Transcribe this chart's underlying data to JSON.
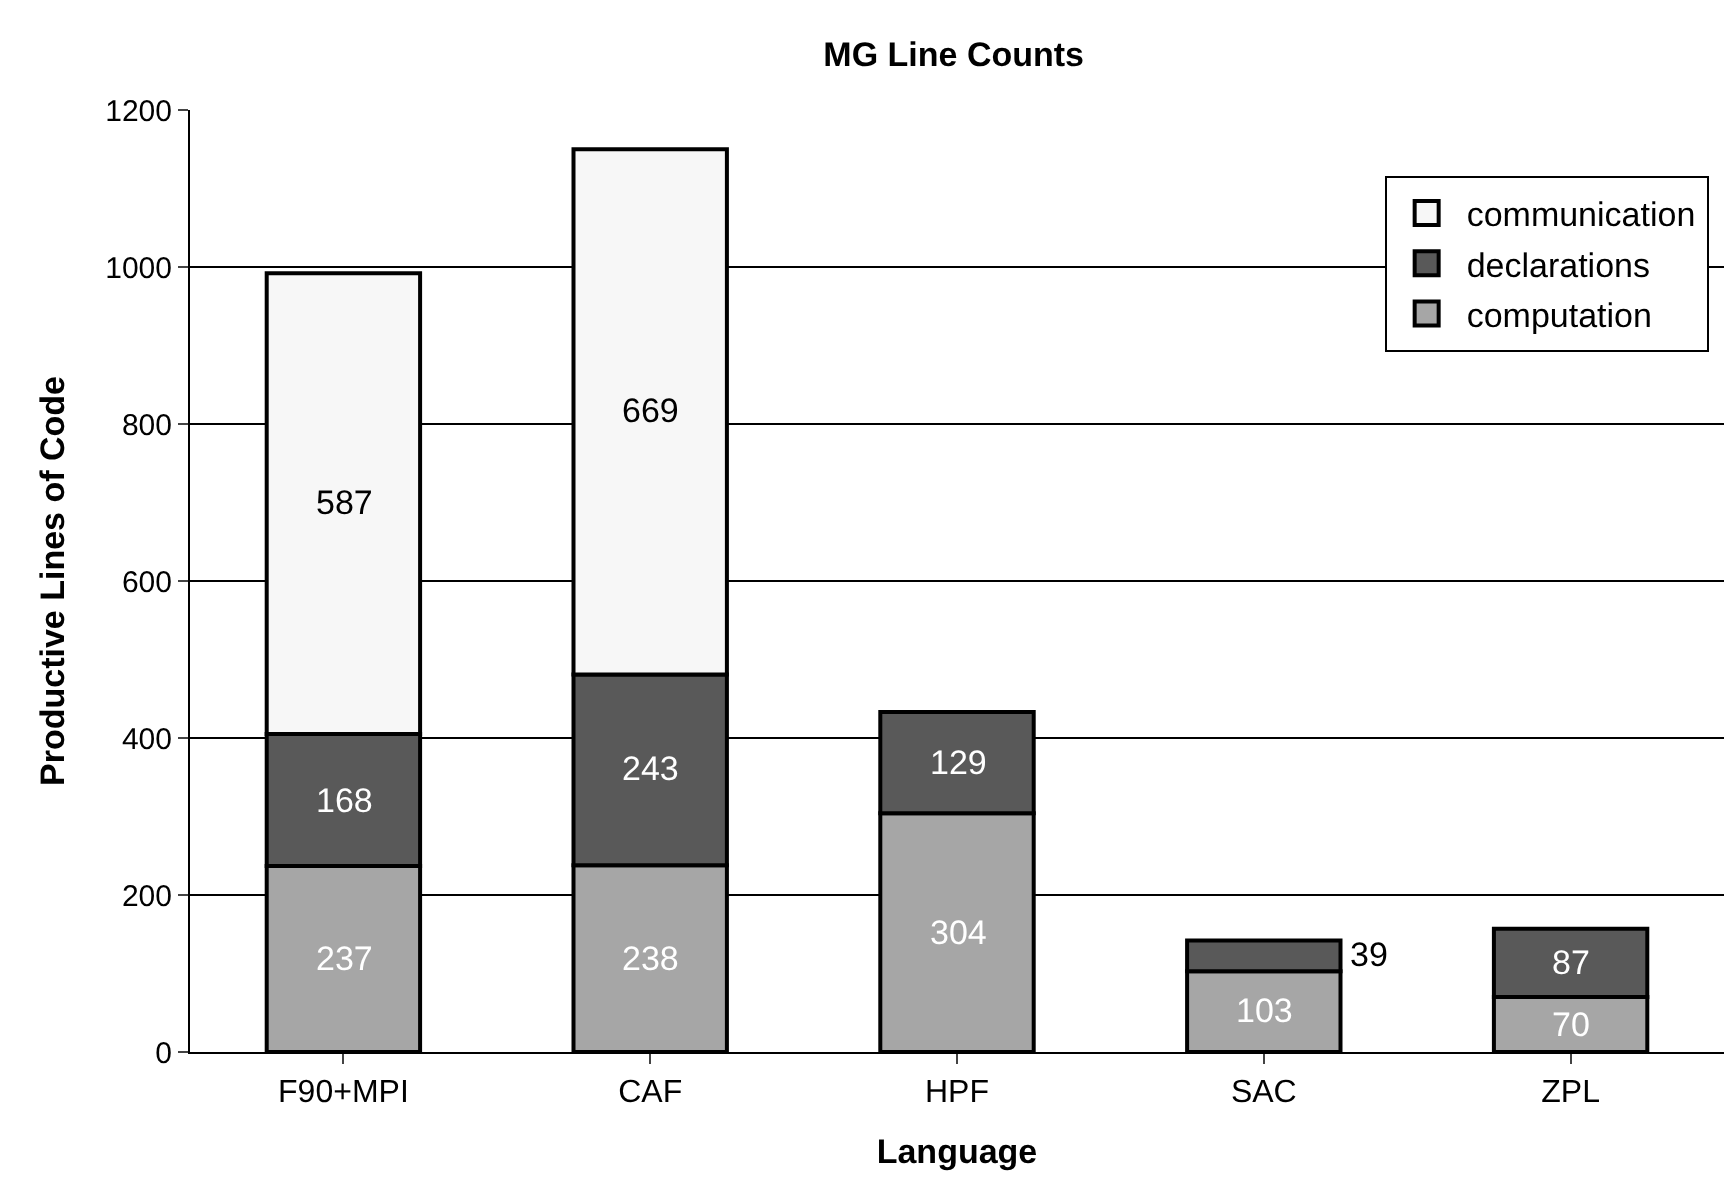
{
  "chart_data": {
    "type": "bar",
    "title": "MG Line Counts",
    "xlabel": "Language",
    "ylabel": "Productive Lines of Code",
    "categories": [
      "F90+MPI",
      "CAF",
      "HPF",
      "SAC",
      "ZPL"
    ],
    "series": [
      {
        "name": "computation",
        "color": "#a6a6a6",
        "values": [
          237,
          238,
          304,
          103,
          70
        ]
      },
      {
        "name": "declarations",
        "color": "#595959",
        "values": [
          168,
          243,
          129,
          39,
          87
        ]
      },
      {
        "name": "communication",
        "color": "#f7f7f7",
        "values": [
          587,
          669,
          null,
          null,
          null
        ]
      }
    ],
    "stacked": true,
    "ylim": [
      0,
      1200
    ],
    "yticks": [
      0,
      200,
      400,
      600,
      800,
      1000,
      1200
    ],
    "grid": "y",
    "legend": "top right",
    "data_labels": true
  }
}
